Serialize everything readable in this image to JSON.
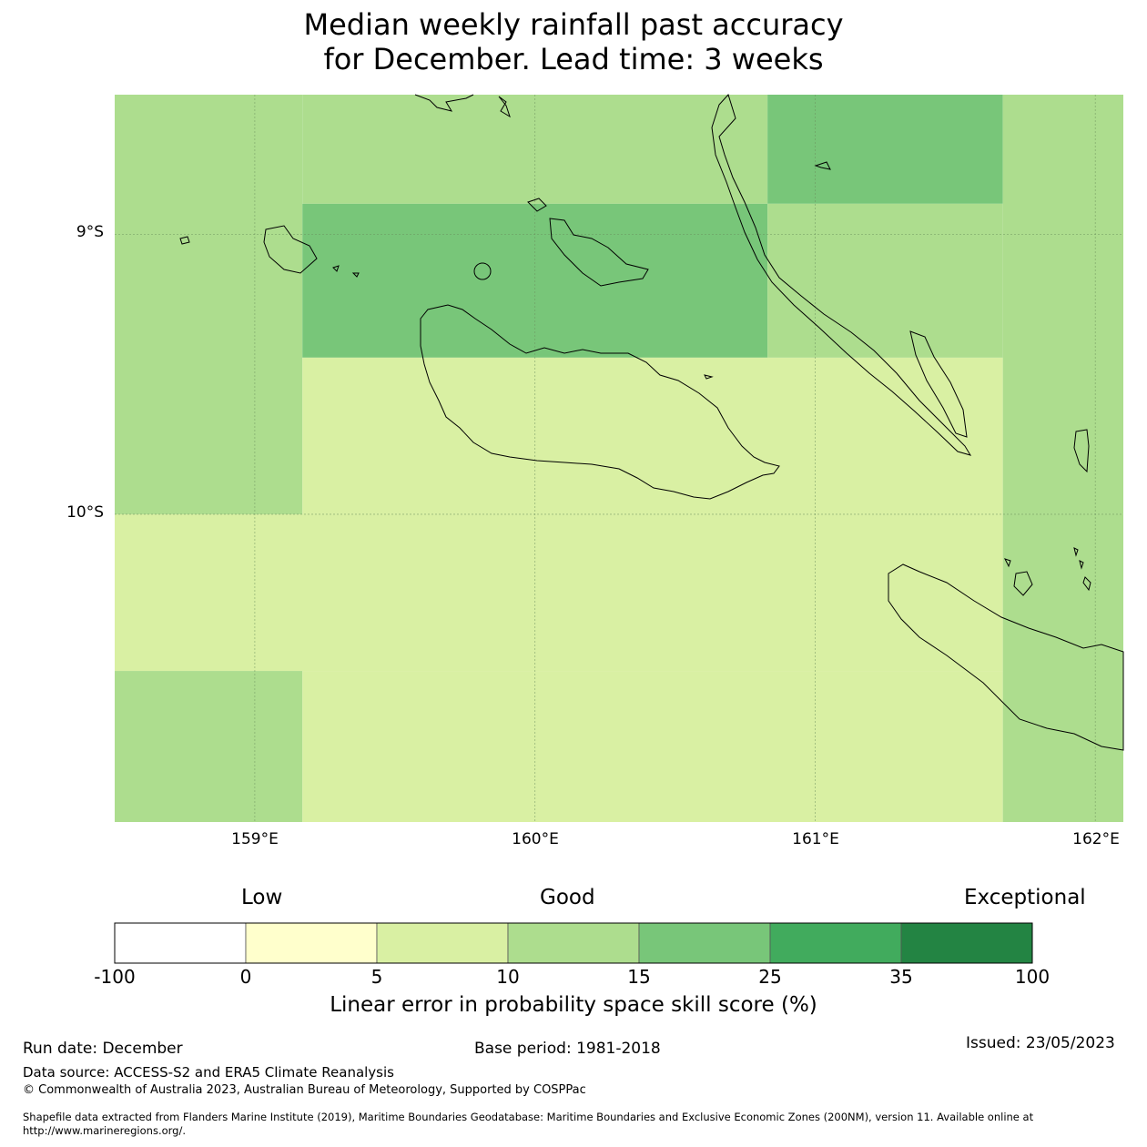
{
  "title": {
    "line1": "Median weekly rainfall past accuracy",
    "line2": "for December. Lead time: 3 weeks"
  },
  "map": {
    "lon_labels": [
      "159°E",
      "160°E",
      "161°E",
      "162°E"
    ],
    "lat_labels": [
      "9°S",
      "10°S"
    ],
    "extent": {
      "lon_min": 158.5,
      "lon_max": 162.1,
      "lat_max": -8.5,
      "lat_min": -11.1
    },
    "cells": [
      {
        "lon0": 158.5,
        "lon1": 159.17,
        "lat0": -8.5,
        "lat1": -10.0,
        "bin": "10-15"
      },
      {
        "lon0": 159.17,
        "lon1": 160.83,
        "lat0": -8.5,
        "lat1": -8.89,
        "bin": "10-15"
      },
      {
        "lon0": 159.17,
        "lon1": 160.83,
        "lat0": -8.89,
        "lat1": -9.44,
        "bin": "15-25"
      },
      {
        "lon0": 159.17,
        "lon1": 161.67,
        "lat0": -9.44,
        "lat1": -10.0,
        "bin": "5-10"
      },
      {
        "lon0": 160.83,
        "lon1": 161.67,
        "lat0": -8.5,
        "lat1": -8.89,
        "bin": "15-25"
      },
      {
        "lon0": 160.83,
        "lon1": 161.67,
        "lat0": -8.89,
        "lat1": -9.44,
        "bin": "10-15"
      },
      {
        "lon0": 161.67,
        "lon1": 162.1,
        "lat0": -8.5,
        "lat1": -10.0,
        "bin": "10-15"
      },
      {
        "lon0": 158.5,
        "lon1": 161.67,
        "lat0": -10.0,
        "lat1": -10.56,
        "bin": "5-10"
      },
      {
        "lon0": 158.5,
        "lon1": 159.17,
        "lat0": -10.56,
        "lat1": -11.1,
        "bin": "10-15"
      },
      {
        "lon0": 159.17,
        "lon1": 161.67,
        "lat0": -10.56,
        "lat1": -11.1,
        "bin": "5-10"
      },
      {
        "lon0": 161.67,
        "lon1": 162.1,
        "lat0": -10.0,
        "lat1": -11.1,
        "bin": "10-15"
      }
    ]
  },
  "legend": {
    "low": "Low",
    "good": "Good",
    "exceptional": "Exceptional",
    "ticks": [
      "-100",
      "0",
      "5",
      "10",
      "15",
      "25",
      "35",
      "100"
    ],
    "colors": [
      "#ffffff",
      "#ffffcc",
      "#d9f0a3",
      "#addd8e",
      "#78c679",
      "#41ab5d",
      "#238443"
    ],
    "bins": [
      "-100-0",
      "0-5",
      "5-10",
      "10-15",
      "15-25",
      "25-35",
      "35-100"
    ],
    "label": "Linear error in probability space skill score (%)"
  },
  "footer": {
    "run_date": "Run date: December",
    "base_period": "Base period: 1981-2018",
    "issued": "Issued: 23/05/2023",
    "data_source": "Data source: ACCESS-S2 and ERA5 Climate Reanalysis",
    "copyright": "© Commonwealth of Australia 2023, Australian Bureau of Meteorology, Supported by COSPPac",
    "shapefile_line1": "Shapefile data extracted from Flanders Marine Institute (2019), Maritime Boundaries Geodatabase: Maritime Boundaries and Exclusive Economic Zones (200NM), version 11. Available online at",
    "shapefile_line2": "http://www.marineregions.org/."
  }
}
